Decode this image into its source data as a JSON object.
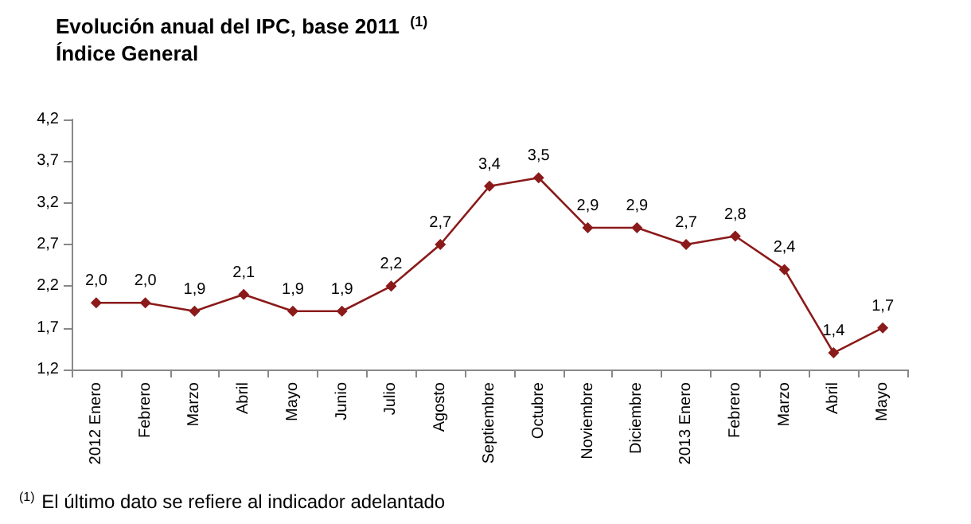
{
  "chart_data": {
    "type": "line",
    "title": "Evolución anual del IPC, base 2011 $^{(1)}$",
    "subtitle": "Índice General",
    "annotations": [
      "$^{(1)}$ El último dato se refiere al indicador adelantado"
    ],
    "categories": [
      "2012 Enero",
      "Febrero",
      "Marzo",
      "Abril",
      "Mayo",
      "Junio",
      "Julio",
      "Agosto",
      "Septiembre",
      "Octubre",
      "Noviembre",
      "Diciembre",
      "2013 Enero",
      "Febrero",
      "Marzo",
      "Abril",
      "Mayo"
    ],
    "series": [
      {
        "color": "#8b1a1a",
        "values": [
          2.0,
          2.0,
          1.9,
          2.1,
          1.9,
          1.9,
          2.2,
          2.7,
          3.4,
          3.5,
          2.9,
          2.9,
          2.7,
          2.8,
          2.4,
          1.4,
          1.7
        ],
        "value_labels": [
          "2,0",
          "2,0",
          "1,9",
          "2,1",
          "1,9",
          "1,9",
          "2,2",
          "2,7",
          "3,4",
          "3,5",
          "2,9",
          "2,9",
          "2,7",
          "2,8",
          "2,4",
          "1,4",
          "1,7"
        ]
      }
    ],
    "ylim": [
      1.2,
      4.2
    ],
    "yticks": [
      {
        "value": 1.2,
        "label": "1,2"
      },
      {
        "value": 1.7,
        "label": "1,7"
      },
      {
        "value": 2.2,
        "label": "2,2"
      },
      {
        "value": 2.7,
        "label": "2,7"
      },
      {
        "value": 3.2,
        "label": "3,2"
      },
      {
        "value": 3.7,
        "label": "3,7"
      },
      {
        "value": 4.2,
        "label": "4,2"
      }
    ],
    "grid": false,
    "marker": "diamond",
    "line_style": "solid"
  }
}
